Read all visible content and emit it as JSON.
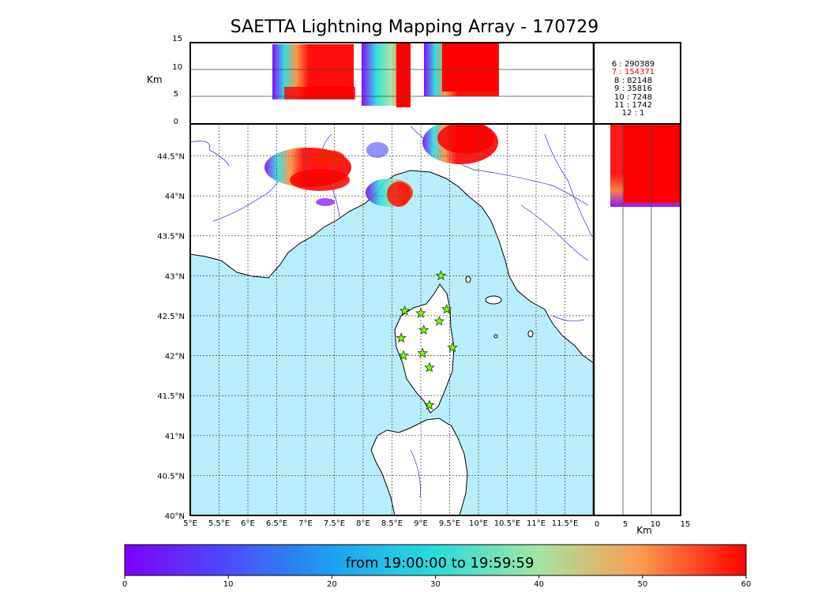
{
  "title": "SAETTA Lightning Mapping Array - 170729",
  "alt_panel": {
    "ylabel": "Km",
    "yticks": [
      "15",
      "10",
      "5",
      "0"
    ]
  },
  "side_panel": {
    "xlabel": "Km",
    "xticks": [
      "0",
      "5",
      "10",
      "15"
    ]
  },
  "map": {
    "lon_ticks": [
      "5°E",
      "5.5°E",
      "6°E",
      "6.5°E",
      "7°E",
      "7.5°E",
      "8°E",
      "8.5°E",
      "9°E",
      "9.5°E",
      "10°E",
      "10.5°E",
      "11°E",
      "11.5°E"
    ],
    "lat_ticks": [
      "44.5°N",
      "44°N",
      "43.5°N",
      "43°N",
      "42.5°N",
      "42°N",
      "41.5°N",
      "41°N",
      "40.5°N",
      "40°N"
    ],
    "stations": [
      {
        "lon": 9.35,
        "lat": 43.0
      },
      {
        "lon": 8.72,
        "lat": 42.56
      },
      {
        "lon": 9.0,
        "lat": 42.53
      },
      {
        "lon": 9.45,
        "lat": 42.58
      },
      {
        "lon": 9.32,
        "lat": 42.43
      },
      {
        "lon": 9.05,
        "lat": 42.32
      },
      {
        "lon": 8.66,
        "lat": 42.22
      },
      {
        "lon": 9.55,
        "lat": 42.1
      },
      {
        "lon": 8.7,
        "lat": 42.0
      },
      {
        "lon": 9.03,
        "lat": 42.03
      },
      {
        "lon": 9.15,
        "lat": 41.85
      },
      {
        "lon": 9.15,
        "lat": 41.38
      }
    ]
  },
  "stats": [
    {
      "label": "6  :   290389",
      "color": "#000000"
    },
    {
      "label": "7  :   154371",
      "color": "#ff0000"
    },
    {
      "label": "8  :    82148",
      "color": "#000000"
    },
    {
      "label": "9  :    35816",
      "color": "#000000"
    },
    {
      "label": "10  :     7248",
      "color": "#000000"
    },
    {
      "label": "11  :     1742",
      "color": "#000000"
    },
    {
      "label": "12  :        1",
      "color": "#000000"
    }
  ],
  "colorbar": {
    "label": "from 19:00:00 to 19:59:59",
    "ticks": [
      "0",
      "10",
      "20",
      "30",
      "40",
      "50",
      "60"
    ],
    "colors": {
      "start": "#7f00ff",
      "mid": "#2adddd",
      "end": "#ff0000"
    }
  },
  "colors": {
    "sea": "#b8eefb",
    "rivers": "#3030d0",
    "station_fill": "#7cfc00"
  }
}
